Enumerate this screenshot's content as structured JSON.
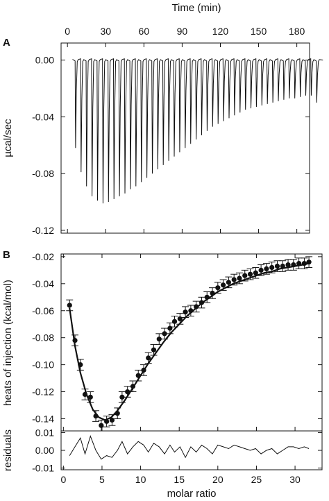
{
  "chart_data": [
    {
      "panel": "A",
      "type": "line",
      "title": "",
      "xlabel": "Time (min)",
      "ylabel": "µcal/sec",
      "xticks": [
        0,
        30,
        60,
        90,
        120,
        150,
        180
      ],
      "yticks": [
        0.0,
        -0.04,
        -0.08,
        -0.12
      ],
      "ytick_labels": [
        "0.00",
        "-0.04",
        "-0.08",
        "-0.12"
      ],
      "xlim": [
        -5,
        190
      ],
      "ylim": [
        -0.122,
        0.012
      ],
      "baseline": 0.0,
      "injection_start_min": 5,
      "injection_interval_min": 4.3,
      "peak_minima": [
        -0.062,
        -0.079,
        -0.089,
        -0.096,
        -0.099,
        -0.101,
        -0.1,
        -0.098,
        -0.096,
        -0.094,
        -0.091,
        -0.089,
        -0.086,
        -0.083,
        -0.08,
        -0.077,
        -0.074,
        -0.071,
        -0.068,
        -0.065,
        -0.062,
        -0.059,
        -0.056,
        -0.053,
        -0.05,
        -0.047,
        -0.045,
        -0.043,
        -0.041,
        -0.039,
        -0.037,
        -0.035,
        -0.034,
        -0.033,
        -0.032,
        -0.031,
        -0.03,
        -0.029,
        -0.028,
        -0.027,
        -0.027,
        -0.026,
        -0.025,
        -0.025,
        -0.03
      ]
    },
    {
      "panel": "B",
      "type": "scatter",
      "title": "",
      "xlabel": "",
      "ylabel": "heats of injection (kcal/mol)",
      "yticks": [
        -0.02,
        -0.04,
        -0.06,
        -0.08,
        -0.1,
        -0.12,
        -0.14
      ],
      "ytick_labels": [
        "-0.02",
        "-0.04",
        "-0.06",
        "-0.08",
        "-0.10",
        "-0.12",
        "-0.14"
      ],
      "xlim": [
        -0.3,
        33.5
      ],
      "ylim": [
        -0.149,
        -0.018
      ],
      "error_bar": 0.004,
      "x": [
        0.8,
        1.5,
        2.2,
        2.8,
        3.5,
        4.2,
        4.9,
        5.6,
        6.3,
        7.0,
        7.6,
        8.3,
        9.0,
        9.7,
        10.4,
        11.0,
        11.7,
        12.4,
        13.1,
        13.8,
        14.4,
        15.1,
        15.8,
        16.5,
        17.2,
        17.9,
        18.6,
        19.3,
        20.0,
        20.7,
        21.4,
        22.1,
        22.8,
        23.5,
        24.2,
        24.9,
        25.6,
        26.3,
        27.0,
        27.7,
        28.4,
        29.1,
        29.8,
        30.5,
        31.2,
        31.8
      ],
      "y": [
        -0.056,
        -0.082,
        -0.1,
        -0.122,
        -0.124,
        -0.138,
        -0.145,
        -0.142,
        -0.141,
        -0.136,
        -0.124,
        -0.12,
        -0.116,
        -0.108,
        -0.104,
        -0.095,
        -0.089,
        -0.081,
        -0.077,
        -0.073,
        -0.068,
        -0.066,
        -0.061,
        -0.06,
        -0.057,
        -0.054,
        -0.05,
        -0.047,
        -0.043,
        -0.041,
        -0.039,
        -0.037,
        -0.036,
        -0.034,
        -0.033,
        -0.032,
        -0.03,
        -0.029,
        -0.028,
        -0.027,
        -0.027,
        -0.026,
        -0.026,
        -0.025,
        -0.025,
        -0.024
      ],
      "fit_x": [
        0.8,
        1.5,
        2.2,
        3.0,
        3.8,
        4.6,
        5.4,
        6.2,
        7.0,
        8.0,
        9.0,
        10.0,
        11.0,
        12.0,
        13.0,
        14.0,
        15.0,
        16.0,
        17.0,
        18.0,
        19.0,
        20.0,
        21.0,
        22.0,
        23.0,
        24.0,
        25.0,
        26.0,
        27.0,
        28.0,
        29.0,
        30.0,
        31.0,
        31.8
      ],
      "fit_y": [
        -0.058,
        -0.086,
        -0.106,
        -0.122,
        -0.133,
        -0.139,
        -0.141,
        -0.139,
        -0.134,
        -0.126,
        -0.117,
        -0.108,
        -0.099,
        -0.091,
        -0.083,
        -0.076,
        -0.07,
        -0.064,
        -0.059,
        -0.054,
        -0.05,
        -0.046,
        -0.043,
        -0.04,
        -0.038,
        -0.036,
        -0.034,
        -0.032,
        -0.031,
        -0.029,
        -0.028,
        -0.027,
        -0.026,
        -0.025
      ]
    },
    {
      "panel": "B-residuals",
      "type": "line",
      "title": "",
      "xlabel": "molar ratio",
      "ylabel": "residuals",
      "xticks": [
        0,
        5,
        10,
        15,
        20,
        25,
        30
      ],
      "yticks": [
        0.01,
        0.0,
        -0.01
      ],
      "ytick_labels": [
        "0.01",
        "0.00",
        "-0.01"
      ],
      "xlim": [
        -0.3,
        33.5
      ],
      "ylim": [
        -0.011,
        0.011
      ],
      "x": [
        0.8,
        1.5,
        2.2,
        2.8,
        3.5,
        4.2,
        4.9,
        5.6,
        6.3,
        7.0,
        7.6,
        8.3,
        9.0,
        9.7,
        10.4,
        11.0,
        11.7,
        12.4,
        13.1,
        13.8,
        14.4,
        15.1,
        15.8,
        16.5,
        17.2,
        17.9,
        18.6,
        19.3,
        20.0,
        20.7,
        21.4,
        22.1,
        22.8,
        23.5,
        24.2,
        24.9,
        25.6,
        26.3,
        27.0,
        27.7,
        28.4,
        29.1,
        29.8,
        30.5,
        31.2,
        31.8
      ],
      "y": [
        -0.003,
        0.002,
        0.007,
        -0.002,
        0.008,
        0.0,
        -0.005,
        -0.003,
        -0.004,
        0.0,
        0.005,
        -0.002,
        0.002,
        0.005,
        0.003,
        -0.001,
        0.004,
        0.002,
        -0.002,
        0.003,
        -0.001,
        0.002,
        -0.004,
        0.002,
        -0.001,
        0.003,
        0.001,
        -0.002,
        0.003,
        0.002,
        0.001,
        0.003,
        0.002,
        0.001,
        0.0,
        0.001,
        -0.002,
        0.0,
        0.001,
        -0.002,
        0.0,
        0.002,
        0.002,
        0.001,
        0.002,
        0.001
      ]
    }
  ],
  "labels": {
    "panel_a": "A",
    "panel_b": "B",
    "time_axis": "Time (min)",
    "power_axis": "µcal/sec",
    "heats_axis": "heats of injection (kcal/mol)",
    "residuals_axis": "residuals",
    "molar_axis": "molar ratio"
  }
}
